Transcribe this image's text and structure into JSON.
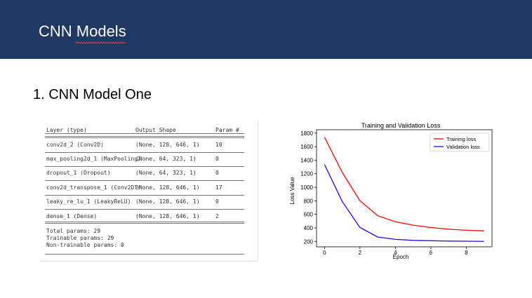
{
  "header": {
    "title": "CNN Models"
  },
  "section": {
    "title": "1. CNN Model One"
  },
  "summary": {
    "columns": [
      "Layer (type)",
      "Output Shape",
      "Param #"
    ],
    "rows": [
      {
        "layer": "conv2d_2 (Conv2D)",
        "shape": "(None, 128, 646, 1)",
        "params": "10"
      },
      {
        "layer": "max_pooling2d_1 (MaxPooling2",
        "shape": "(None, 64, 323, 1)",
        "params": "0"
      },
      {
        "layer": "dropout_1 (Dropout)",
        "shape": "(None, 64, 323, 1)",
        "params": "0"
      },
      {
        "layer": "conv2d_transpose_1 (Conv2DTr",
        "shape": "(None, 128, 646, 1)",
        "params": "17"
      },
      {
        "layer": "leaky_re_lu_1 (LeakyReLU)",
        "shape": "(None, 128, 646, 1)",
        "params": "0"
      },
      {
        "layer": "dense_1 (Dense)",
        "shape": "(None, 128, 646, 1)",
        "params": "2"
      }
    ],
    "total_params": "Total params: 29",
    "trainable_params": "Trainable params: 29",
    "non_trainable_params": "Non-trainable params: 0"
  },
  "chart_data": {
    "type": "line",
    "title": "Training and Validation Loss",
    "xlabel": "Epoch",
    "ylabel": "Loss Value",
    "x": [
      0,
      1,
      2,
      3,
      4,
      5,
      6,
      7,
      8,
      9
    ],
    "xlim": [
      -0.45,
      9.45
    ],
    "ylim": [
      120,
      1850
    ],
    "xticks": [
      0,
      2,
      4,
      6,
      8
    ],
    "yticks": [
      200,
      400,
      600,
      800,
      1000,
      1200,
      1400,
      1600,
      1800
    ],
    "legend_position": "top-right",
    "grid": false,
    "series": [
      {
        "name": "Training loss",
        "color": "#ff0000",
        "values": [
          1740,
          1220,
          800,
          580,
          490,
          440,
          405,
          380,
          365,
          355
        ]
      },
      {
        "name": "Validation loss",
        "color": "#3300ff",
        "values": [
          1335,
          790,
          405,
          265,
          230,
          215,
          210,
          205,
          203,
          200
        ]
      }
    ]
  }
}
